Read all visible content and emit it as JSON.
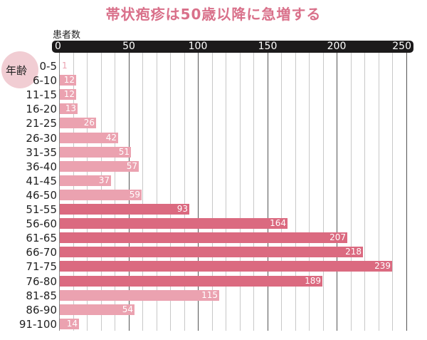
{
  "title": "帯状疱疹は50歳以降に急増する",
  "colors": {
    "title": "#d9708a",
    "bar_light": "#eba2b0",
    "bar_dark": "#db6a80",
    "axis_bar": "#1c1a1b",
    "circle": "#f1cdd3"
  },
  "chart_data": {
    "type": "bar",
    "orientation": "horizontal",
    "title": "帯状疱疹は50歳以降に急増する",
    "xlabel": "患者数",
    "ylabel": "年齢",
    "xlim": [
      0,
      250
    ],
    "xticks": [
      "0",
      "50",
      "100",
      "150",
      "200",
      "250"
    ],
    "grid": true,
    "categories": [
      "0-5",
      "6-10",
      "11-15",
      "16-20",
      "21-25",
      "26-30",
      "31-35",
      "36-40",
      "41-45",
      "46-50",
      "51-55",
      "56-60",
      "61-65",
      "66-70",
      "71-75",
      "76-80",
      "81-85",
      "86-90",
      "91-100"
    ],
    "values": [
      1,
      12,
      12,
      13,
      26,
      42,
      51,
      57,
      37,
      59,
      93,
      164,
      207,
      218,
      239,
      189,
      115,
      54,
      14
    ],
    "highlight": [
      false,
      false,
      false,
      false,
      false,
      false,
      false,
      false,
      false,
      false,
      true,
      true,
      true,
      true,
      true,
      true,
      false,
      false,
      false
    ]
  }
}
